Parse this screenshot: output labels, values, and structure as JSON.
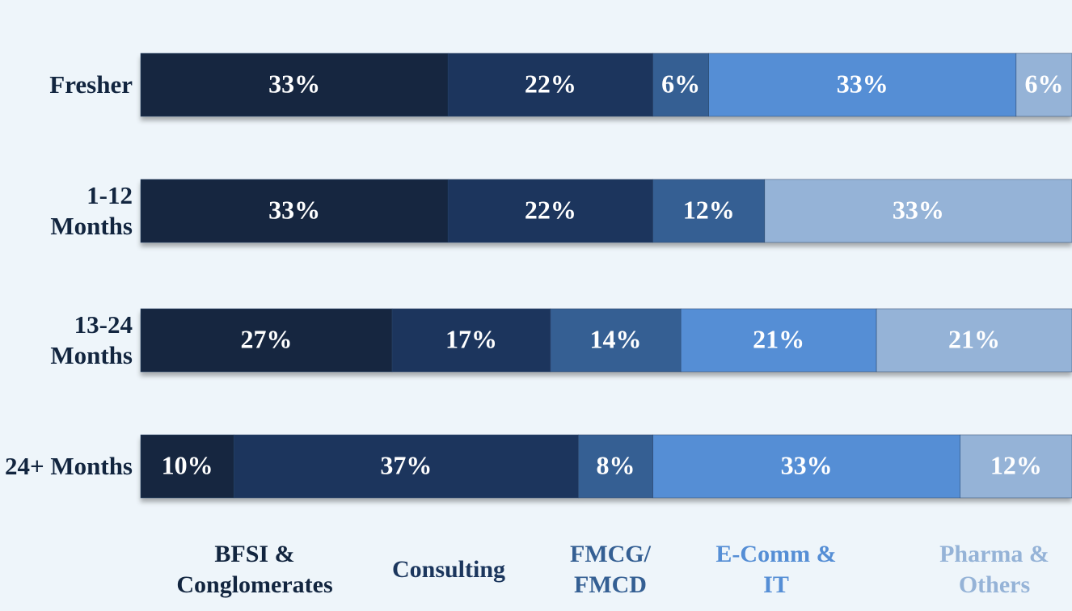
{
  "chart_data": {
    "type": "stacked_bar_horizontal",
    "categories": [
      "Fresher",
      "1-12 Months",
      "13-24 Months",
      "24+ Months"
    ],
    "xlim": [
      0,
      100
    ],
    "series": [
      {
        "name": "BFSI & Conglomerates",
        "color": "#12253f",
        "values": [
          33,
          33,
          27,
          10
        ],
        "value_labels": [
          "33%",
          "33%",
          "27%",
          "10%"
        ]
      },
      {
        "name": "Consulting",
        "color": "#1b365d",
        "values": [
          22,
          22,
          17,
          37
        ],
        "value_labels": [
          "22%",
          "22%",
          "17%",
          "37%"
        ]
      },
      {
        "name": "FMCG/ FMCD",
        "color": "#345f93",
        "values": [
          6,
          12,
          14,
          8
        ],
        "value_labels": [
          "6%",
          "12%",
          "14%",
          "8%"
        ]
      },
      {
        "name": "E-Comm & IT",
        "color": "#558ed5",
        "values": [
          33,
          null,
          21,
          33
        ],
        "value_labels": [
          "33%",
          null,
          "21%",
          "33%"
        ]
      },
      {
        "name": "Pharma & Others",
        "color": "#95b3d7",
        "values": [
          6,
          33,
          21,
          12
        ],
        "value_labels": [
          "6%",
          "33%",
          "21%",
          "12%"
        ]
      }
    ]
  }
}
